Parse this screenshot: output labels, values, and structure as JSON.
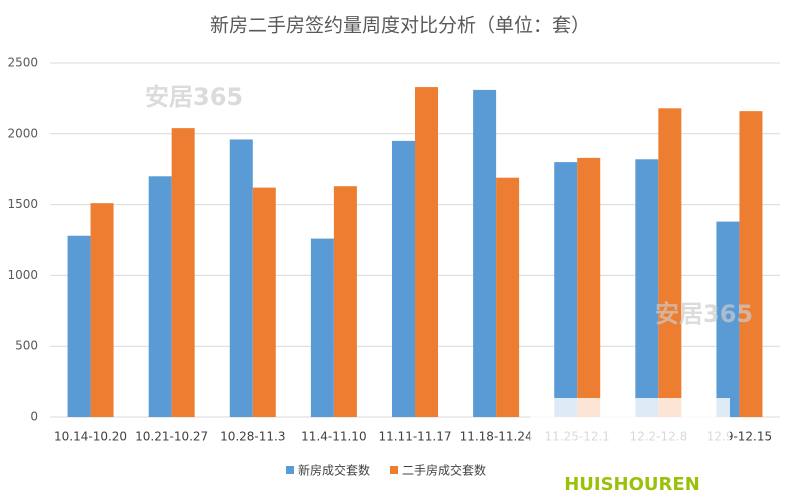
{
  "chart_data": {
    "type": "bar",
    "title": "新房二手房签约量周度对比分析（单位：套）",
    "categories": [
      "10.14-10.20",
      "10.21-10.27",
      "10.28-11.3",
      "11.4-11.10",
      "11.11-11.17",
      "11.18-11.24",
      "11.25-12.1",
      "12.2-12.8",
      "12.9-12.15"
    ],
    "series": [
      {
        "name": "新房成交套数",
        "color": "#5b9bd5",
        "values": [
          1280,
          1700,
          1960,
          1260,
          1950,
          2310,
          1800,
          1820,
          1380
        ]
      },
      {
        "name": "二手房成交套数",
        "color": "#ed7d31",
        "values": [
          1510,
          2040,
          1620,
          1630,
          2330,
          1690,
          1830,
          2180,
          2160
        ]
      }
    ],
    "ylim": [
      0,
      2500
    ],
    "yticks": [
      0,
      500,
      1000,
      1500,
      2000,
      2500
    ],
    "grid": true,
    "legend": "bottom",
    "watermarks": [
      "安居365",
      "安居365",
      "HUISHOUREN"
    ]
  }
}
